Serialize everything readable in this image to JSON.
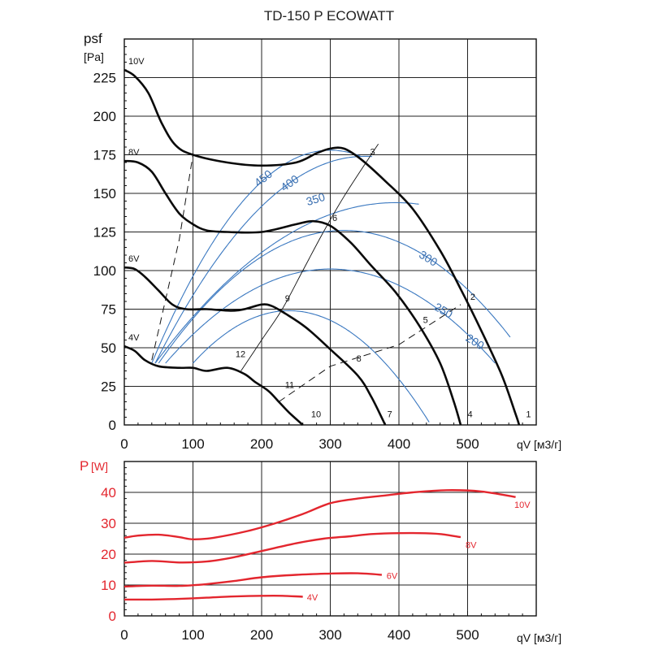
{
  "chart_data": [
    {
      "type": "line",
      "title": "TD-150 P ECOWATT",
      "ylabel": "psf",
      "yunit": "[Pa]",
      "xlabel": "qV",
      "xunit": "[м3/г]",
      "xlim": [
        0,
        600
      ],
      "ylim": [
        0,
        250
      ],
      "x_ticks": [
        0,
        100,
        200,
        300,
        400,
        500
      ],
      "y_ticks": [
        0,
        25,
        50,
        75,
        100,
        125,
        150,
        175,
        200,
        225
      ],
      "series": [
        {
          "name": "10V",
          "label": "10V",
          "points": [
            [
              0,
              230
            ],
            [
              15,
              226
            ],
            [
              35,
              215
            ],
            [
              55,
              195
            ],
            [
              75,
              181
            ],
            [
              100,
              175
            ],
            [
              150,
              170
            ],
            [
              200,
              168
            ],
            [
              250,
              170
            ],
            [
              280,
              176
            ],
            [
              300,
              179
            ],
            [
              320,
              179
            ],
            [
              345,
              172
            ],
            [
              380,
              158
            ],
            [
              420,
              140
            ],
            [
              460,
              113
            ],
            [
              490,
              88
            ],
            [
              520,
              61
            ],
            [
              550,
              32
            ],
            [
              570,
              7
            ],
            [
              575,
              0
            ]
          ]
        },
        {
          "name": "8V",
          "label": "8V",
          "points": [
            [
              0,
              171
            ],
            [
              20,
              170
            ],
            [
              40,
              164
            ],
            [
              60,
              150
            ],
            [
              80,
              137
            ],
            [
              100,
              130
            ],
            [
              120,
              126
            ],
            [
              150,
              125
            ],
            [
              200,
              125
            ],
            [
              250,
              130
            ],
            [
              275,
              132
            ],
            [
              300,
              129
            ],
            [
              330,
              118
            ],
            [
              360,
              103
            ],
            [
              395,
              86
            ],
            [
              430,
              64
            ],
            [
              460,
              40
            ],
            [
              480,
              15
            ],
            [
              490,
              0
            ]
          ]
        },
        {
          "name": "6V",
          "label": "6V",
          "points": [
            [
              0,
              102
            ],
            [
              15,
              101
            ],
            [
              30,
              96
            ],
            [
              50,
              87
            ],
            [
              70,
              78
            ],
            [
              90,
              75
            ],
            [
              120,
              75
            ],
            [
              155,
              74
            ],
            [
              175,
              75
            ],
            [
              200,
              78
            ],
            [
              215,
              77
            ],
            [
              235,
              72
            ],
            [
              265,
              63
            ],
            [
              300,
              49
            ],
            [
              340,
              32
            ],
            [
              360,
              18
            ],
            [
              380,
              0
            ]
          ]
        },
        {
          "name": "4V",
          "label": "4V",
          "points": [
            [
              0,
              51
            ],
            [
              15,
              48
            ],
            [
              30,
              42
            ],
            [
              50,
              38
            ],
            [
              80,
              37
            ],
            [
              100,
              37
            ],
            [
              120,
              35
            ],
            [
              150,
              37
            ],
            [
              175,
              33
            ],
            [
              190,
              28
            ],
            [
              210,
              22
            ],
            [
              225,
              15
            ],
            [
              240,
              8
            ],
            [
              260,
              0
            ]
          ]
        }
      ],
      "point_labels": [
        {
          "label": "1",
          "x": 585,
          "y": 5
        },
        {
          "label": "2",
          "x": 504,
          "y": 81
        },
        {
          "label": "3",
          "x": 358,
          "y": 175
        },
        {
          "label": "4",
          "x": 500,
          "y": 5
        },
        {
          "label": "5",
          "x": 435,
          "y": 66
        },
        {
          "label": "6",
          "x": 303,
          "y": 132
        },
        {
          "label": "7",
          "x": 383,
          "y": 5
        },
        {
          "label": "8",
          "x": 338,
          "y": 41
        },
        {
          "label": "9",
          "x": 234,
          "y": 80
        },
        {
          "label": "10",
          "x": 272,
          "y": 5
        },
        {
          "label": "11",
          "x": 234,
          "y": 24
        },
        {
          "label": "12",
          "x": 162,
          "y": 44
        }
      ],
      "rpm_curves": [
        {
          "label": "450",
          "label_x": 195,
          "label_y": 154
        },
        {
          "label": "400",
          "label_x": 233,
          "label_y": 151
        },
        {
          "label": "350",
          "label_x": 267,
          "label_y": 142
        },
        {
          "label": "300",
          "label_x": 428,
          "label_y": 109
        },
        {
          "label": "250",
          "label_x": 450,
          "label_y": 75
        },
        {
          "label": "200",
          "label_x": 496,
          "label_y": 55
        }
      ]
    },
    {
      "type": "line",
      "ylabel": "P",
      "yunit": "[W]",
      "xlabel": "qV",
      "xunit": "[м3/г]",
      "xlim": [
        0,
        600
      ],
      "ylim": [
        0,
        50
      ],
      "x_ticks": [
        0,
        100,
        200,
        300,
        400,
        500
      ],
      "y_ticks": [
        0,
        10,
        20,
        30,
        40
      ],
      "series": [
        {
          "name": "10V",
          "label": "10V",
          "points": [
            [
              0,
              25.3
            ],
            [
              20,
              26
            ],
            [
              50,
              26.3
            ],
            [
              80,
              25.5
            ],
            [
              100,
              24.8
            ],
            [
              130,
              25.3
            ],
            [
              180,
              27.5
            ],
            [
              220,
              30
            ],
            [
              260,
              33
            ],
            [
              300,
              36.5
            ],
            [
              340,
              38
            ],
            [
              380,
              39
            ],
            [
              420,
              40
            ],
            [
              470,
              40.7
            ],
            [
              520,
              40.3
            ],
            [
              570,
              38.5
            ]
          ]
        },
        {
          "name": "8V",
          "label": "8V",
          "points": [
            [
              0,
              17.2
            ],
            [
              40,
              17.8
            ],
            [
              80,
              17.3
            ],
            [
              120,
              17.6
            ],
            [
              160,
              19
            ],
            [
              200,
              21
            ],
            [
              250,
              23.5
            ],
            [
              290,
              25
            ],
            [
              330,
              25.8
            ],
            [
              360,
              26.5
            ],
            [
              400,
              26.8
            ],
            [
              430,
              26.8
            ],
            [
              460,
              26.5
            ],
            [
              490,
              25.5
            ]
          ]
        },
        {
          "name": "6V",
          "label": "6V",
          "points": [
            [
              0,
              9.5
            ],
            [
              40,
              9.8
            ],
            [
              80,
              9.7
            ],
            [
              120,
              10.3
            ],
            [
              160,
              11.3
            ],
            [
              200,
              12.5
            ],
            [
              250,
              13.3
            ],
            [
              300,
              13.7
            ],
            [
              340,
              13.8
            ],
            [
              375,
              13.3
            ]
          ]
        },
        {
          "name": "4V",
          "label": "4V",
          "points": [
            [
              0,
              5.3
            ],
            [
              40,
              5.3
            ],
            [
              80,
              5.5
            ],
            [
              120,
              5.9
            ],
            [
              160,
              6.3
            ],
            [
              200,
              6.5
            ],
            [
              230,
              6.5
            ],
            [
              260,
              6.2
            ]
          ]
        }
      ]
    }
  ]
}
